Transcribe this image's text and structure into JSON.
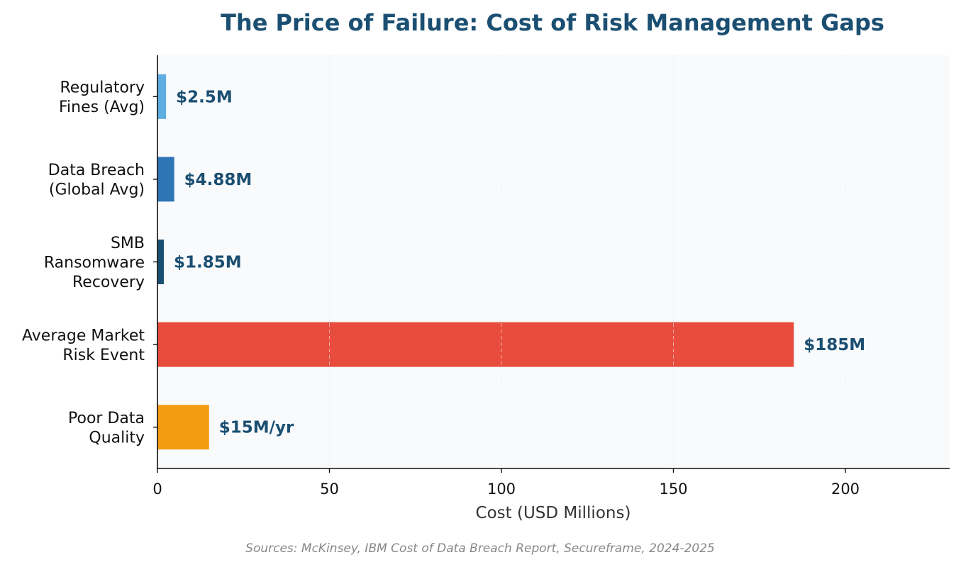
{
  "chart_data": {
    "type": "bar",
    "orientation": "horizontal",
    "title": "The Price of Failure: Cost of Risk Management Gaps",
    "xlabel": "Cost (USD Millions)",
    "ylabel": "",
    "xlim": [
      0,
      230
    ],
    "xticks": [
      0,
      50,
      100,
      150,
      200
    ],
    "grid": "vertical dashed",
    "categories": [
      [
        "Regulatory",
        "Fines (Avg)"
      ],
      [
        "Data Breach",
        "(Global Avg)"
      ],
      [
        "SMB",
        "Ransomware",
        "Recovery"
      ],
      [
        "Average Market",
        "Risk Event"
      ],
      [
        "Poor Data",
        "Quality"
      ]
    ],
    "values": [
      2.5,
      4.88,
      1.85,
      185,
      15
    ],
    "value_labels": [
      "$2.5M",
      "$4.88M",
      "$1.85M",
      "$185M",
      "$15M/yr"
    ],
    "colors": [
      "#5dade2",
      "#2e75b6",
      "#1b4f72",
      "#e74c3c",
      "#f39c12"
    ],
    "label_color": "#1b4f72",
    "plot_background": "#f8fafc",
    "source_note": "Sources: McKinsey, IBM Cost of Data Breach Report, Secureframe, 2024-2025"
  }
}
